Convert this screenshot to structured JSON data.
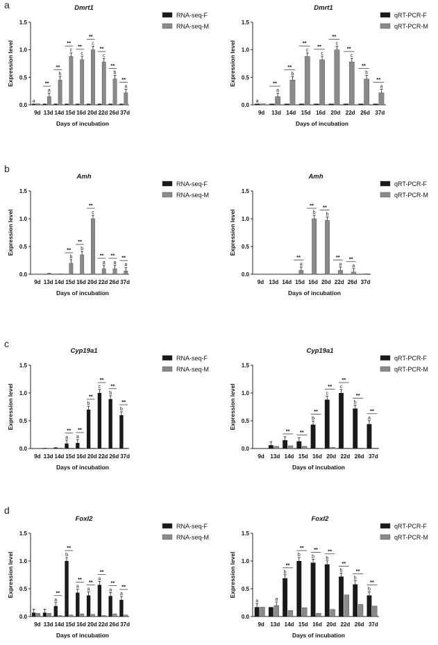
{
  "panels": [
    {
      "letter": "a",
      "charts": [
        0,
        1
      ]
    },
    {
      "letter": "b",
      "charts": [
        2,
        3
      ]
    },
    {
      "letter": "c",
      "charts": [
        4,
        5
      ]
    },
    {
      "letter": "d",
      "charts": [
        6,
        7
      ]
    }
  ],
  "colors": {
    "female": "#1a1a1a",
    "male": "#8a8a8a",
    "axis": "#222222",
    "text": "#111111"
  },
  "chart_data": [
    {
      "type": "bar",
      "title": "Dmrt1",
      "categories": [
        "9d",
        "13d",
        "14d",
        "15d",
        "16d",
        "20d",
        "22d",
        "26d",
        "37d"
      ],
      "ylim": [
        0,
        1.5
      ],
      "yticks": [
        "0.0",
        "0.5",
        "1.0",
        "1.5"
      ],
      "xlabel": "Days of incubation",
      "ylabel": "Expression level",
      "legend": "top-right",
      "series": [
        {
          "name": "RNA-seq-F",
          "values": [
            0.02,
            0.02,
            0.02,
            0.02,
            0.02,
            0.02,
            0.02,
            0.02,
            0.02
          ]
        },
        {
          "name": "RNA-seq-M",
          "values": [
            0.02,
            0.15,
            0.45,
            0.88,
            0.82,
            1.0,
            0.78,
            0.47,
            0.22
          ]
        }
      ],
      "letters": [
        "a",
        "a",
        "b",
        "c",
        "c",
        "c",
        "c",
        "b",
        "a"
      ],
      "sig": [
        "",
        "**",
        "**",
        "**",
        "**",
        "**",
        "**",
        "**",
        "**"
      ]
    },
    {
      "type": "bar",
      "title": "Dmrt1",
      "categories": [
        "9d",
        "13d",
        "14d",
        "15d",
        "16d",
        "20d",
        "22d",
        "26d",
        "37d"
      ],
      "ylim": [
        0,
        1.5
      ],
      "yticks": [
        "0.0",
        "0.5",
        "1.0",
        "1.5"
      ],
      "xlabel": "Days of incubation",
      "ylabel": "Expression level",
      "legend": "top-right",
      "series": [
        {
          "name": "qRT-PCR-F",
          "values": [
            0.02,
            0.02,
            0.02,
            0.02,
            0.02,
            0.02,
            0.02,
            0.02,
            0.02
          ]
        },
        {
          "name": "qRT-PCR-M",
          "values": [
            0.02,
            0.15,
            0.45,
            0.88,
            0.82,
            1.0,
            0.78,
            0.47,
            0.22
          ]
        }
      ],
      "letters": [
        "a",
        "a",
        "b",
        "c",
        "c",
        "c",
        "c",
        "b",
        "a"
      ],
      "sig": [
        "",
        "**",
        "**",
        "**",
        "**",
        "**",
        "**",
        "**",
        "**"
      ]
    },
    {
      "type": "bar",
      "title": "Amh",
      "categories": [
        "9d",
        "13d",
        "14d",
        "15d",
        "16d",
        "20d",
        "22d",
        "26d",
        "37d"
      ],
      "ylim": [
        0,
        1.5
      ],
      "yticks": [
        "0.0",
        "0.5",
        "1.0",
        "1.5"
      ],
      "xlabel": "Days of incubation",
      "ylabel": "Expression level",
      "legend": "top-right",
      "series": [
        {
          "name": "RNA-seq-F",
          "values": [
            0.0,
            0.0,
            0.0,
            0.0,
            0.0,
            0.0,
            0.0,
            0.0,
            0.0
          ]
        },
        {
          "name": "RNA-seq-M",
          "values": [
            0.0,
            0.02,
            0.01,
            0.2,
            0.35,
            1.0,
            0.1,
            0.1,
            0.06
          ]
        }
      ],
      "letters": [
        "",
        "",
        "",
        "b",
        "b",
        "c",
        "a",
        "a",
        "a"
      ],
      "sig": [
        "",
        "",
        "",
        "**",
        "**",
        "**",
        "**",
        "**",
        "**"
      ]
    },
    {
      "type": "bar",
      "title": "Amh",
      "categories": [
        "9d",
        "13d",
        "14d",
        "15d",
        "16d",
        "20d",
        "22d",
        "26d",
        "37d"
      ],
      "ylim": [
        0,
        1.5
      ],
      "yticks": [
        "0.0",
        "0.5",
        "1.0",
        "1.5"
      ],
      "xlabel": "Days of incubation",
      "ylabel": "Expression level",
      "legend": "top-right",
      "series": [
        {
          "name": "qRT-PCR-F",
          "values": [
            0.0,
            0.0,
            0.0,
            0.0,
            0.0,
            0.0,
            0.0,
            0.0,
            0.0
          ]
        },
        {
          "name": "qRT-PCR-M",
          "values": [
            0.0,
            0.0,
            0.0,
            0.07,
            1.0,
            0.97,
            0.07,
            0.04,
            0.01
          ]
        }
      ],
      "letters": [
        "",
        "",
        "",
        "a",
        "b",
        "b",
        "a",
        "a",
        ""
      ],
      "sig": [
        "",
        "",
        "",
        "**",
        "**",
        "**",
        "**",
        "**",
        ""
      ]
    },
    {
      "type": "bar",
      "title": "Cyp19a1",
      "categories": [
        "9d",
        "13d",
        "14d",
        "15d",
        "16d",
        "20d",
        "22d",
        "26d",
        "37d"
      ],
      "ylim": [
        0,
        1.5
      ],
      "yticks": [
        "0.0",
        "0.5",
        "1.0",
        "1.5"
      ],
      "xlabel": "Days of incubation",
      "ylabel": "Expression level",
      "legend": "top-right",
      "series": [
        {
          "name": "RNA-seq-F",
          "values": [
            0.0,
            0.01,
            0.02,
            0.09,
            0.1,
            0.7,
            1.0,
            0.89,
            0.6
          ]
        },
        {
          "name": "RNA-seq-M",
          "values": [
            0.0,
            0.0,
            0.01,
            0.01,
            0.01,
            0.01,
            0.01,
            0.01,
            0.01
          ]
        }
      ],
      "letters": [
        "",
        "",
        "",
        "a",
        "a",
        "b",
        "c",
        "b",
        "b"
      ],
      "sig": [
        "",
        "",
        "",
        "**",
        "**",
        "**",
        "**",
        "**",
        "**"
      ]
    },
    {
      "type": "bar",
      "title": "Cyp19a1",
      "categories": [
        "9d",
        "13d",
        "14d",
        "15d",
        "16d",
        "20d",
        "22d",
        "26d",
        "37d"
      ],
      "ylim": [
        0,
        1.5
      ],
      "yticks": [
        "0.0",
        "0.5",
        "1.0",
        "1.5"
      ],
      "xlabel": "Days of incubation",
      "ylabel": "Expression level",
      "legend": "top-right",
      "series": [
        {
          "name": "qRT-PCR-F",
          "values": [
            0.0,
            0.06,
            0.15,
            0.13,
            0.43,
            0.88,
            1.0,
            0.72,
            0.44
          ]
        },
        {
          "name": "qRT-PCR-M",
          "values": [
            0.0,
            0.04,
            0.05,
            0.04,
            0.01,
            0.02,
            0.01,
            0.01,
            0.01
          ]
        }
      ],
      "letters": [
        "",
        "",
        "",
        "",
        "b",
        "c",
        "c",
        "b",
        "a"
      ],
      "sig": [
        "",
        "",
        "**",
        "**",
        "**",
        "**",
        "**",
        "**",
        "**"
      ]
    },
    {
      "type": "bar",
      "title": "Foxl2",
      "categories": [
        "9d",
        "13d",
        "14d",
        "15d",
        "16d",
        "20d",
        "22d",
        "26d",
        "37d"
      ],
      "ylim": [
        0,
        1.5
      ],
      "yticks": [
        "0.0",
        "0.5",
        "1.0",
        "1.5"
      ],
      "xlabel": "Days of incubation",
      "ylabel": "Expression level",
      "legend": "top-right",
      "series": [
        {
          "name": "RNA-seq-F",
          "values": [
            0.07,
            0.07,
            0.19,
            1.0,
            0.43,
            0.38,
            0.57,
            0.37,
            0.3
          ]
        },
        {
          "name": "RNA-seq-M",
          "values": [
            0.06,
            0.06,
            0.02,
            0.03,
            0.05,
            0.04,
            0.02,
            0.05,
            0.03
          ]
        }
      ],
      "letters": [
        "",
        "",
        "a",
        "b",
        "a",
        "a",
        "a",
        "a",
        "a"
      ],
      "sig": [
        "",
        "",
        "**",
        "**",
        "**",
        "**",
        "**",
        "**",
        "**"
      ]
    },
    {
      "type": "bar",
      "title": "Foxl2",
      "categories": [
        "9d",
        "13d",
        "14d",
        "15d",
        "16d",
        "20d",
        "22d",
        "26d",
        "37d"
      ],
      "ylim": [
        0,
        1.5
      ],
      "yticks": [
        "0.0",
        "0.5",
        "1.0",
        "1.5"
      ],
      "xlabel": "Days of incubation",
      "ylabel": "Expression level",
      "legend": "top-right",
      "series": [
        {
          "name": "qRT-PCR-F",
          "values": [
            0.17,
            0.17,
            0.69,
            1.0,
            0.97,
            0.94,
            0.72,
            0.58,
            0.38
          ]
        },
        {
          "name": "qRT-PCR-M",
          "values": [
            0.17,
            0.2,
            0.11,
            0.16,
            0.06,
            0.13,
            0.39,
            0.22,
            0.19
          ]
        }
      ],
      "letters": [
        "a",
        "a",
        "b",
        "b",
        "b",
        "b",
        "b",
        "b",
        "b"
      ],
      "sig": [
        "",
        "",
        "**",
        "**",
        "**",
        "**",
        "**",
        "**",
        "**"
      ]
    }
  ]
}
